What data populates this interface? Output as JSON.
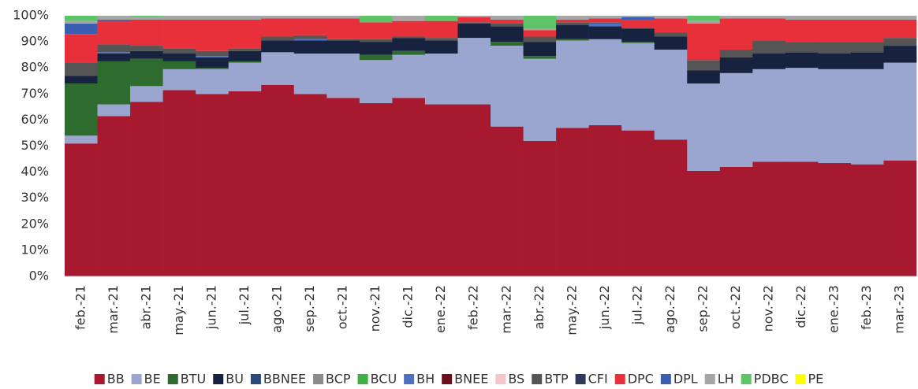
{
  "chart_data": {
    "type": "stacked_bar",
    "categories": [
      "feb.-21",
      "mar.-21",
      "abr.-21",
      "may.-21",
      "jun.-21",
      "jul.-21",
      "ago.-21",
      "sep.-21",
      "oct.-21",
      "nov.-21",
      "dic.-21",
      "ene.-22",
      "feb.-22",
      "mar.-22",
      "abr.-22",
      "may.-22",
      "jun.-22",
      "jul.-22",
      "ago.-22",
      "sep.-22",
      "oct.-22",
      "nov.-22",
      "dic.-22",
      "ene.-23",
      "feb.-23",
      "mar.-23"
    ],
    "series": [
      {
        "name": "BB",
        "color": "#a6192e",
        "values": [
          51,
          61.5,
          67,
          71.5,
          70,
          71,
          73.5,
          70,
          68.5,
          66.5,
          68.5,
          66,
          66,
          57.5,
          52,
          57,
          58,
          56,
          52.5,
          40.5,
          42,
          44,
          44,
          43.5,
          43,
          44.5
        ]
      },
      {
        "name": "BE",
        "color": "#9ba6d0",
        "values": [
          3,
          4.5,
          6,
          8,
          9.5,
          11,
          12.5,
          15.5,
          17,
          16.5,
          16.5,
          19.5,
          25.5,
          31,
          31.5,
          33.5,
          33,
          33.5,
          34.5,
          33.5,
          36,
          35.5,
          36,
          36,
          36.5,
          37.5
        ]
      },
      {
        "name": "BTU",
        "color": "#2e6b2e",
        "values": [
          20,
          16.5,
          10.5,
          3,
          0.5,
          0.5,
          0,
          0,
          0,
          2,
          1.5,
          0,
          0,
          1.5,
          1,
          0.5,
          0,
          0.5,
          0,
          0,
          0,
          0,
          0,
          0,
          0,
          0
        ]
      },
      {
        "name": "BU",
        "color": "#17233e",
        "values": [
          3,
          3,
          3,
          3,
          4,
          4,
          4.5,
          5,
          5,
          5,
          5,
          5,
          5.5,
          6,
          5.5,
          5.5,
          5,
          5,
          5,
          5,
          6,
          6,
          6,
          6,
          6.5,
          6.5
        ]
      },
      {
        "name": "BBNEE",
        "color": "#2b4a7a",
        "values": [
          0,
          0,
          0,
          0,
          0,
          0,
          0,
          0,
          0,
          0,
          0,
          0,
          0,
          0,
          0,
          0,
          0,
          0,
          0,
          0,
          0,
          0,
          0,
          0,
          0,
          0
        ]
      },
      {
        "name": "BCP",
        "color": "#8c8c8c",
        "values": [
          0,
          0,
          0,
          0,
          0,
          0,
          0,
          0,
          0,
          0,
          0,
          0,
          0,
          0,
          0,
          0,
          0,
          0,
          0,
          0,
          0,
          0,
          0,
          0,
          0,
          0
        ]
      },
      {
        "name": "BCU",
        "color": "#3cb044",
        "values": [
          0,
          0,
          0,
          0,
          0,
          0,
          0,
          0,
          0,
          0,
          0,
          0,
          0,
          0,
          0,
          0,
          0,
          0,
          0,
          0,
          0,
          0,
          0,
          0,
          0,
          0
        ]
      },
      {
        "name": "BH",
        "color": "#4f6fc0",
        "values": [
          0,
          0.5,
          0,
          0,
          0.5,
          0,
          0,
          0.5,
          0,
          0,
          0,
          0,
          0,
          0,
          0,
          0,
          1,
          0,
          0,
          0,
          0,
          0,
          0,
          0,
          0,
          0
        ]
      },
      {
        "name": "BNEE",
        "color": "#6b0f1a",
        "values": [
          0,
          0,
          0,
          0,
          0,
          0,
          0,
          0,
          0,
          0,
          0,
          0,
          0,
          0,
          0,
          0,
          0,
          0,
          0,
          0,
          0,
          0,
          0,
          0,
          0,
          0
        ]
      },
      {
        "name": "BS",
        "color": "#f4c6c8",
        "values": [
          0,
          0,
          0,
          0,
          0,
          0,
          0,
          0,
          0,
          0,
          0,
          0,
          0,
          0,
          0,
          0,
          0,
          0,
          0,
          0,
          0,
          0,
          0,
          0,
          0,
          0
        ]
      },
      {
        "name": "BTP",
        "color": "#555555",
        "values": [
          5,
          3,
          2,
          2,
          2,
          1,
          1.5,
          1.5,
          0.5,
          1,
          0.5,
          1,
          0.5,
          1,
          2,
          1,
          0.5,
          0.5,
          1.5,
          4,
          3,
          5,
          4,
          4.5,
          4,
          3
        ]
      },
      {
        "name": "CFI",
        "color": "#2e3a5c",
        "values": [
          0,
          0,
          0,
          0,
          0,
          0,
          0,
          0,
          0,
          0,
          0,
          0,
          0,
          0,
          0,
          0,
          0,
          0,
          0,
          0,
          0,
          0,
          0,
          0,
          0,
          0
        ]
      },
      {
        "name": "DPC",
        "color": "#e8303a",
        "values": [
          11,
          9,
          10,
          11,
          12,
          11,
          7,
          6.5,
          8,
          6.5,
          6,
          6.5,
          2,
          1.5,
          2.5,
          1,
          1.5,
          3,
          5.5,
          14,
          12,
          8.5,
          8.5,
          8.5,
          8.5,
          7
        ]
      },
      {
        "name": "DPL",
        "color": "#3a5fb0",
        "values": [
          4,
          0.5,
          0,
          0,
          0,
          0,
          0,
          0,
          0,
          0,
          0,
          0,
          0,
          0,
          0,
          0,
          0,
          1,
          0,
          0,
          0,
          0,
          0,
          0,
          0,
          0
        ]
      },
      {
        "name": "LH",
        "color": "#a6a6a6",
        "values": [
          1,
          1.5,
          1,
          1.5,
          1.5,
          1.5,
          1,
          1,
          1,
          0,
          2,
          0,
          0.5,
          1.5,
          0.5,
          1.5,
          1,
          0.5,
          1,
          1,
          1,
          1,
          1.5,
          1.5,
          1.5,
          1.5
        ]
      },
      {
        "name": "PDBC",
        "color": "#5ec46a",
        "values": [
          2,
          0,
          0.5,
          0,
          0,
          0,
          0,
          0,
          0,
          2.5,
          0,
          2,
          0,
          0,
          5,
          0,
          0,
          0,
          0,
          2,
          0,
          0,
          0,
          0,
          0,
          0
        ]
      },
      {
        "name": "PE",
        "color": "#ffff00",
        "values": [
          0,
          0,
          0,
          0,
          0,
          0,
          0,
          0,
          0,
          0,
          0,
          0,
          0,
          0,
          0,
          0,
          0,
          0,
          0,
          0,
          0,
          0,
          0,
          0,
          0,
          0
        ]
      }
    ],
    "ylim": [
      0,
      100
    ],
    "yticks": [
      {
        "value": 0,
        "label": "0%"
      },
      {
        "value": 10,
        "label": "10%"
      },
      {
        "value": 20,
        "label": "20%"
      },
      {
        "value": 30,
        "label": "30%"
      },
      {
        "value": 40,
        "label": "40%"
      },
      {
        "value": 50,
        "label": "50%"
      },
      {
        "value": 60,
        "label": "60%"
      },
      {
        "value": 70,
        "label": "70%"
      },
      {
        "value": 80,
        "label": "80%"
      },
      {
        "value": 90,
        "label": "90%"
      },
      {
        "value": 100,
        "label": "100%"
      }
    ],
    "legend": "bottom"
  }
}
